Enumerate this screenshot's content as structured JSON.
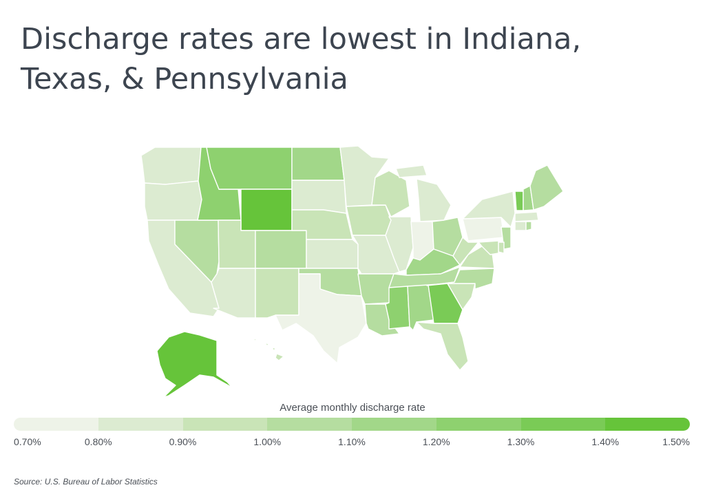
{
  "title": "Discharge rates are lowest in Indiana, Texas, & Pennsylvania",
  "chart_data": {
    "type": "choropleth",
    "metric": "Average monthly discharge rate",
    "unit": "%",
    "color_scale": {
      "min_color": "#eef3e8",
      "max_color": "#66c43a",
      "bins": [
        {
          "from": 0.7,
          "to": 0.8,
          "color": "#eef3e8"
        },
        {
          "from": 0.8,
          "to": 0.9,
          "color": "#dcebd1"
        },
        {
          "from": 0.9,
          "to": 1.0,
          "color": "#c9e4b7"
        },
        {
          "from": 1.0,
          "to": 1.1,
          "color": "#b5dda0"
        },
        {
          "from": 1.1,
          "to": 1.2,
          "color": "#a2d789"
        },
        {
          "from": 1.2,
          "to": 1.3,
          "color": "#8ed16f"
        },
        {
          "from": 1.3,
          "to": 1.4,
          "color": "#7acb56"
        },
        {
          "from": 1.4,
          "to": 1.5,
          "color": "#66c43a"
        }
      ]
    },
    "legend": {
      "title": "Average monthly discharge rate",
      "ticks": [
        "0.70%",
        "0.80%",
        "0.90%",
        "1.00%",
        "1.10%",
        "1.20%",
        "1.30%",
        "1.40%",
        "1.50%"
      ]
    },
    "states": {
      "WA": 0.85,
      "OR": 0.85,
      "CA": 0.85,
      "NV": 1.05,
      "ID": 1.25,
      "MT": 1.25,
      "WY": 1.45,
      "UT": 0.95,
      "AZ": 0.85,
      "CO": 1.05,
      "NM": 0.95,
      "ND": 1.15,
      "SD": 0.85,
      "NE": 0.95,
      "KS": 0.85,
      "OK": 1.05,
      "TX": 0.75,
      "MN": 0.85,
      "IA": 0.95,
      "MO": 0.85,
      "AR": 1.05,
      "LA": 1.05,
      "WI": 0.95,
      "IL": 0.85,
      "MI": 0.85,
      "IN": 0.75,
      "OH": 1.05,
      "KY": 1.15,
      "TN": 1.05,
      "MS": 1.25,
      "AL": 1.15,
      "GA": 1.35,
      "FL": 0.95,
      "SC": 0.95,
      "NC": 1.05,
      "VA": 0.95,
      "WV": 0.95,
      "PA": 0.75,
      "NY": 0.85,
      "NJ": 1.05,
      "DE": 0.95,
      "MD": 0.95,
      "CT": 0.85,
      "RI": 1.05,
      "MA": 0.85,
      "VT": 1.35,
      "NH": 1.15,
      "ME": 1.05,
      "AK": 1.45,
      "HI": 0.95
    }
  },
  "source": {
    "label": "Source:",
    "text": "U.S. Bureau of Labor Statistics"
  }
}
